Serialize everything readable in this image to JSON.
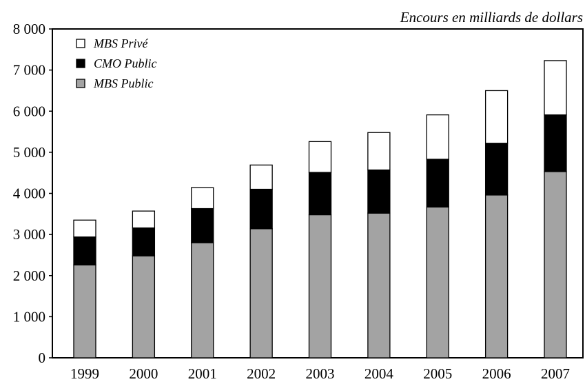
{
  "chart_data": {
    "type": "bar",
    "stacked": true,
    "subtitle": "Encours en milliards de dollars",
    "categories": [
      "1999",
      "2000",
      "2001",
      "2002",
      "2003",
      "2004",
      "2005",
      "2006",
      "2007"
    ],
    "series": [
      {
        "name": "MBS Public",
        "color": "#a3a3a3",
        "values": [
          2260,
          2480,
          2800,
          3140,
          3480,
          3520,
          3670,
          3960,
          4530
        ]
      },
      {
        "name": "CMO Public",
        "color": "#000000",
        "values": [
          680,
          680,
          830,
          960,
          1030,
          1050,
          1160,
          1260,
          1380
        ]
      },
      {
        "name": "MBS Privé",
        "color": "#ffffff",
        "values": [
          410,
          410,
          510,
          590,
          750,
          910,
          1080,
          1280,
          1320
        ]
      }
    ],
    "ylim": [
      0,
      8000
    ],
    "yticks": [
      0,
      1000,
      2000,
      3000,
      4000,
      5000,
      6000,
      7000,
      8000
    ],
    "ytick_labels": [
      "0",
      "1 000",
      "2 000",
      "3 000",
      "4 000",
      "5 000",
      "6 000",
      "7 000",
      "8 000"
    ],
    "legend": {
      "placement": "top-left",
      "order": [
        "MBS Privé",
        "CMO Public",
        "MBS Public"
      ]
    },
    "grid": false
  }
}
